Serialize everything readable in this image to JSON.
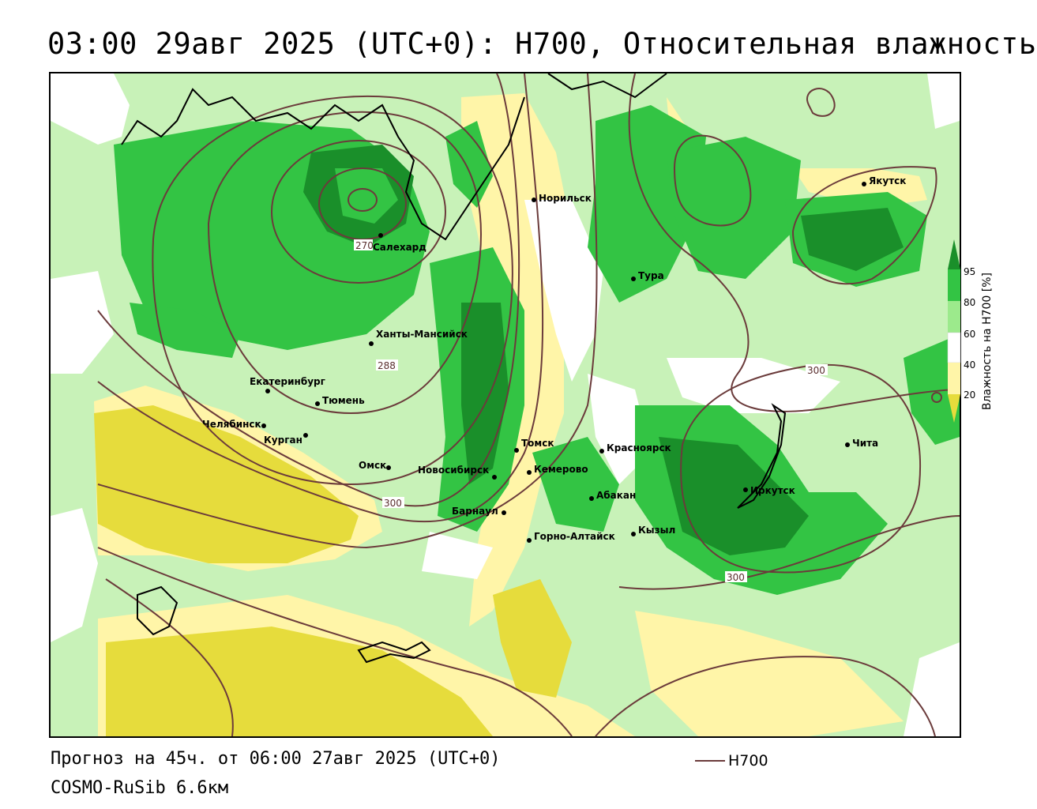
{
  "title": "03:00 29авг 2025 (UTC+0): H700, Относительная влажность",
  "footer": {
    "forecast": "Прогноз на 45ч. от 06:00 27авг 2025 (UTC+0)",
    "model": "COSMO-RuSib 6.6км"
  },
  "legend": {
    "contour_name": "H700",
    "contour_color": "#6b3b3b"
  },
  "colorbar": {
    "title": "Влажность на H700 [%]",
    "ticks": [
      "95",
      "80",
      "60",
      "40",
      "20"
    ],
    "colors": [
      "#1a8f2a",
      "#33c444",
      "#9cea8c",
      "#ffffff",
      "#fff5a8",
      "#e6dc3c"
    ]
  },
  "cities": [
    {
      "name": "Салехард"
    },
    {
      "name": "Норильск"
    },
    {
      "name": "Якутск"
    },
    {
      "name": "Тура"
    },
    {
      "name": "Ханты-Мансийск"
    },
    {
      "name": "Екатеринбург"
    },
    {
      "name": "Тюмень"
    },
    {
      "name": "Челябинск"
    },
    {
      "name": "Курган"
    },
    {
      "name": "Омск"
    },
    {
      "name": "Томск"
    },
    {
      "name": "Новосибирск"
    },
    {
      "name": "Кемерово"
    },
    {
      "name": "Красноярск"
    },
    {
      "name": "Абакан"
    },
    {
      "name": "Барнаул"
    },
    {
      "name": "Горно-Алтайск"
    },
    {
      "name": "Кызыл"
    },
    {
      "name": "Иркутск"
    },
    {
      "name": "Чита"
    }
  ],
  "contour_labels": [
    "270",
    "288",
    "300",
    "300",
    "300"
  ]
}
